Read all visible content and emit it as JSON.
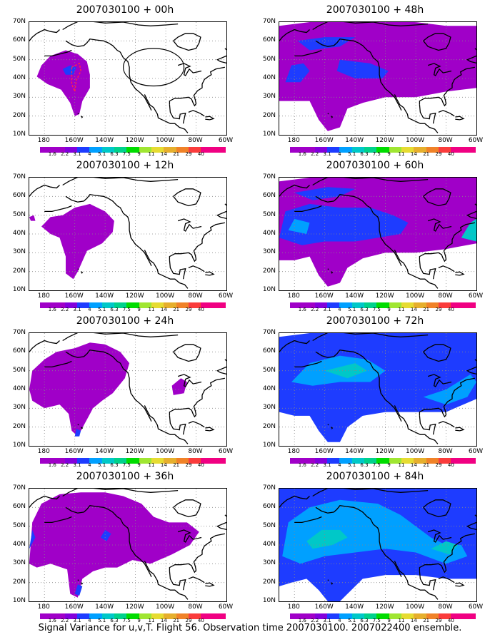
{
  "figure": {
    "caption": "Signal Variance for u,v,T. Flight 56. Observation time 2007030100. 2007022400 ensemble."
  },
  "axes": {
    "y_ticks": [
      "70N",
      "60N",
      "50N",
      "40N",
      "30N",
      "20N",
      "10N"
    ],
    "x_ticks": [
      "180",
      "160W",
      "140W",
      "120W",
      "100W",
      "80W",
      "60W"
    ]
  },
  "colorbar": {
    "labels": [
      "1.6",
      "2.2",
      "3.1",
      "4",
      "5.1",
      "6.3",
      "7.5",
      "9",
      "11",
      "14",
      "21",
      "29",
      "40"
    ],
    "colors": [
      "#a000c8",
      "#8200dc",
      "#1e3cff",
      "#00a0ff",
      "#00c8c8",
      "#00d28c",
      "#00dc00",
      "#a0e632",
      "#e6dc32",
      "#e6af2d",
      "#f08228",
      "#fa3c3c",
      "#f00082"
    ]
  },
  "chart_data": {
    "type": "map",
    "variable": "signal variance u,v,T",
    "panels": [
      {
        "title": "2007030100 + 00h",
        "forecast_hour": 0,
        "max_level": "2.2"
      },
      {
        "title": "2007030100 + 12h",
        "forecast_hour": 12,
        "max_level": "2.2"
      },
      {
        "title": "2007030100 + 24h",
        "forecast_hour": 24,
        "max_level": "4"
      },
      {
        "title": "2007030100 + 36h",
        "forecast_hour": 36,
        "max_level": "4"
      },
      {
        "title": "2007030100 + 48h",
        "forecast_hour": 48,
        "max_level": "5.1"
      },
      {
        "title": "2007030100 + 60h",
        "forecast_hour": 60,
        "max_level": "6.3"
      },
      {
        "title": "2007030100 + 72h",
        "forecast_hour": 72,
        "max_level": "6.3"
      },
      {
        "title": "2007030100 + 84h",
        "forecast_hour": 84,
        "max_level": "6.3"
      }
    ]
  }
}
